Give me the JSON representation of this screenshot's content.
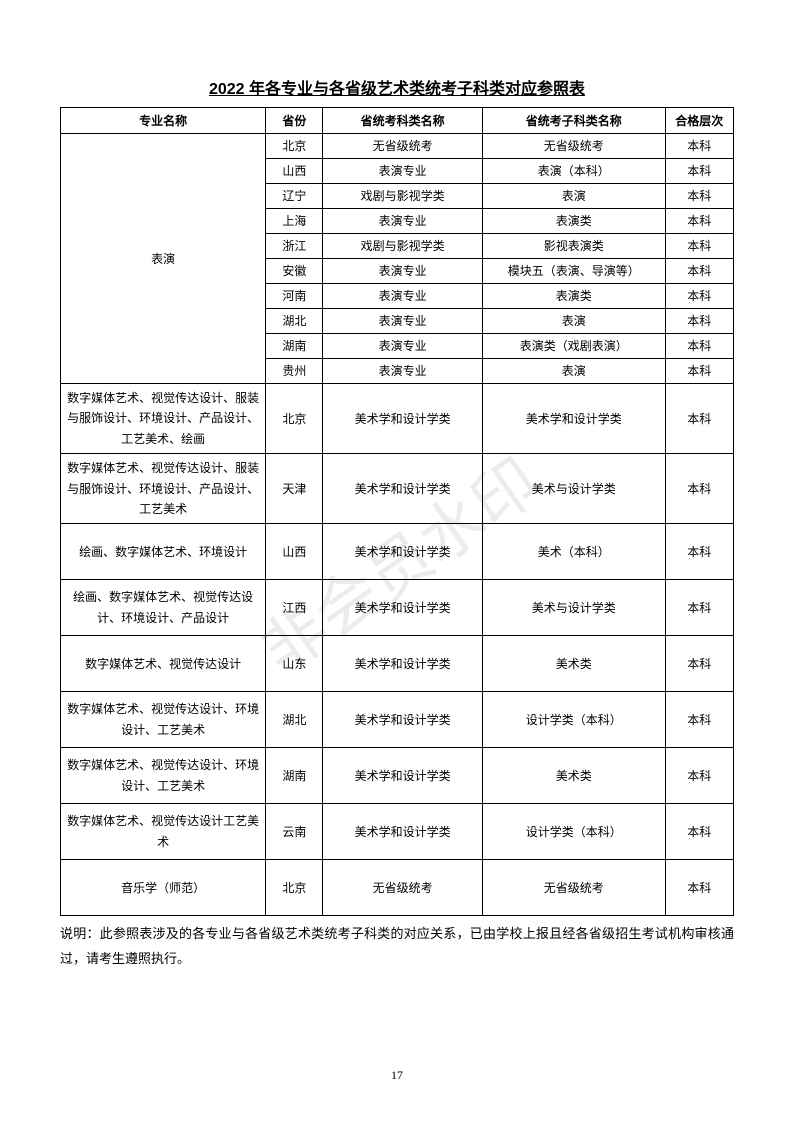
{
  "title": "2022 年各专业与各省级艺术类统考子科类对应参照表",
  "watermark": "非会员水印",
  "columns": [
    "专业名称",
    "省份",
    "省统考科类名称",
    "省统考子科类名称",
    "合格层次"
  ],
  "biaoyanLabel": "表演",
  "biaoyanRows": [
    {
      "prov": "北京",
      "exam": "无省级统考",
      "sub": "无省级统考",
      "level": "本科"
    },
    {
      "prov": "山西",
      "exam": "表演专业",
      "sub": "表演（本科）",
      "level": "本科"
    },
    {
      "prov": "辽宁",
      "exam": "戏剧与影视学类",
      "sub": "表演",
      "level": "本科"
    },
    {
      "prov": "上海",
      "exam": "表演专业",
      "sub": "表演类",
      "level": "本科"
    },
    {
      "prov": "浙江",
      "exam": "戏剧与影视学类",
      "sub": "影视表演类",
      "level": "本科"
    },
    {
      "prov": "安徽",
      "exam": "表演专业",
      "sub": "模块五（表演、导演等）",
      "level": "本科"
    },
    {
      "prov": "河南",
      "exam": "表演专业",
      "sub": "表演类",
      "level": "本科"
    },
    {
      "prov": "湖北",
      "exam": "表演专业",
      "sub": "表演",
      "level": "本科"
    },
    {
      "prov": "湖南",
      "exam": "表演专业",
      "sub": "表演类（戏剧表演）",
      "level": "本科"
    },
    {
      "prov": "贵州",
      "exam": "表演专业",
      "sub": "表演",
      "level": "本科"
    }
  ],
  "otherRows": [
    {
      "major": "数字媒体艺术、视觉传达设计、服装与服饰设计、环境设计、产品设计、工艺美术、绘画",
      "prov": "北京",
      "exam": "美术学和设计学类",
      "sub": "美术学和设计学类",
      "level": "本科",
      "h": "tall-row"
    },
    {
      "major": "数字媒体艺术、视觉传达设计、服装与服饰设计、环境设计、产品设计、工艺美术",
      "prov": "天津",
      "exam": "美术学和设计学类",
      "sub": "美术与设计学类",
      "level": "本科",
      "h": "tall-row"
    },
    {
      "major": "绘画、数字媒体艺术、环境设计",
      "prov": "山西",
      "exam": "美术学和设计学类",
      "sub": "美术（本科）",
      "level": "本科",
      "h": "tall-row"
    },
    {
      "major": "绘画、数字媒体艺术、视觉传达设计、环境设计、产品设计",
      "prov": "江西",
      "exam": "美术学和设计学类",
      "sub": "美术与设计学类",
      "level": "本科",
      "h": "tall-row"
    },
    {
      "major": "数字媒体艺术、视觉传达设计",
      "prov": "山东",
      "exam": "美术学和设计学类",
      "sub": "美术类",
      "level": "本科",
      "h": "tall-row"
    },
    {
      "major": "数字媒体艺术、视觉传达设计、环境设计、工艺美术",
      "prov": "湖北",
      "exam": "美术学和设计学类",
      "sub": "设计学类（本科）",
      "level": "本科",
      "h": "tall-row"
    },
    {
      "major": "数字媒体艺术、视觉传达设计、环境设计、工艺美术",
      "prov": "湖南",
      "exam": "美术学和设计学类",
      "sub": "美术类",
      "level": "本科",
      "h": "tall-row"
    },
    {
      "major": "数字媒体艺术、视觉传达设计工艺美术",
      "prov": "云南",
      "exam": "美术学和设计学类",
      "sub": "设计学类（本科）",
      "level": "本科",
      "h": "tall-row"
    },
    {
      "major": "音乐学（师范）",
      "prov": "北京",
      "exam": "无省级统考",
      "sub": "无省级统考",
      "level": "本科",
      "h": "tall-row"
    }
  ],
  "note": "说明：此参照表涉及的各专业与各省级艺术类统考子科类的对应关系，已由学校上报且经各省级招生考试机构审核通过，请考生遵照执行。",
  "pageNum": "17"
}
